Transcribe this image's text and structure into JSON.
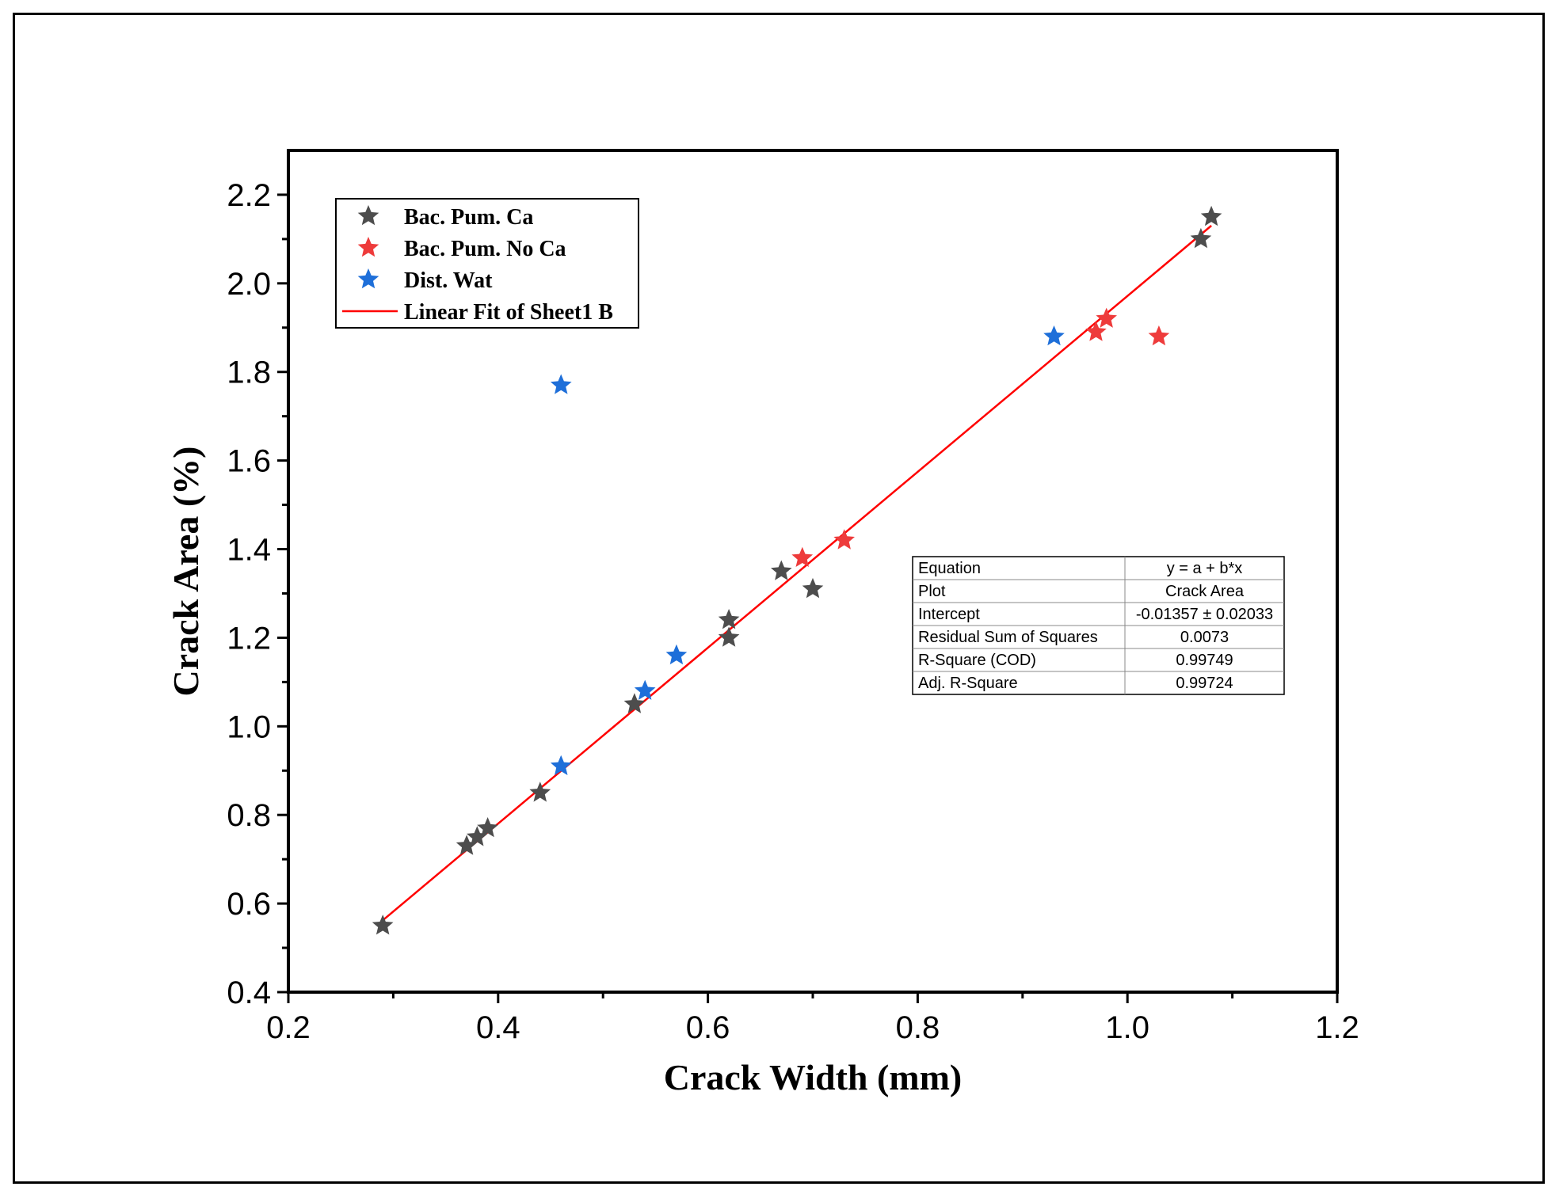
{
  "chart_data": {
    "type": "scatter",
    "title": "",
    "xlabel": "Crack Width (mm)",
    "ylabel": "Crack Area (%)",
    "xlim": [
      0.2,
      1.2
    ],
    "ylim": [
      0.4,
      2.3
    ],
    "x_ticks": [
      0.2,
      0.4,
      0.6,
      0.8,
      1.0,
      1.2
    ],
    "x_tick_labels": [
      "0.2",
      "0.4",
      "0.6",
      "0.8",
      "1.0",
      "1.2"
    ],
    "y_ticks": [
      0.4,
      0.6,
      0.8,
      1.0,
      1.2,
      1.4,
      1.6,
      1.8,
      2.0,
      2.2
    ],
    "y_tick_labels": [
      "0.4",
      "0.6",
      "0.8",
      "1.0",
      "1.2",
      "1.4",
      "1.6",
      "1.8",
      "2.0",
      "2.2"
    ],
    "legend_position": "top-left",
    "series": [
      {
        "name": "Bac. Pum. Ca",
        "color": "#4d4d4d",
        "marker": "star",
        "points": [
          [
            0.29,
            0.55
          ],
          [
            0.37,
            0.73
          ],
          [
            0.38,
            0.75
          ],
          [
            0.39,
            0.77
          ],
          [
            0.44,
            0.85
          ],
          [
            0.53,
            1.05
          ],
          [
            0.62,
            1.2
          ],
          [
            0.62,
            1.24
          ],
          [
            0.67,
            1.35
          ],
          [
            0.7,
            1.31
          ],
          [
            1.07,
            2.1
          ],
          [
            1.08,
            2.15
          ]
        ]
      },
      {
        "name": "Bac. Pum. No Ca",
        "color": "#ee3b3b",
        "marker": "star",
        "points": [
          [
            0.69,
            1.38
          ],
          [
            0.73,
            1.42
          ],
          [
            0.97,
            1.89
          ],
          [
            0.98,
            1.92
          ],
          [
            1.03,
            1.88
          ]
        ]
      },
      {
        "name": "Dist. Wat",
        "color": "#1e6fd9",
        "marker": "star",
        "points": [
          [
            0.46,
            0.91
          ],
          [
            0.54,
            1.08
          ],
          [
            0.57,
            1.16
          ],
          [
            0.93,
            1.88
          ],
          [
            0.46,
            1.77
          ]
        ]
      }
    ],
    "fit": {
      "name": "Linear Fit of Sheet1 B",
      "color": "#ff0000",
      "intercept": -0.01357,
      "slope": 1.985,
      "x_range": [
        0.29,
        1.08
      ]
    },
    "stats_table": [
      [
        "Equation",
        "y = a + b*x"
      ],
      [
        "Plot",
        "Crack Area"
      ],
      [
        "Intercept",
        "-0.01357 ± 0.02033"
      ],
      [
        "Residual Sum of Squares",
        "0.0073"
      ],
      [
        "R-Square (COD)",
        "0.99749"
      ],
      [
        "Adj. R-Square",
        "0.99724"
      ]
    ]
  }
}
